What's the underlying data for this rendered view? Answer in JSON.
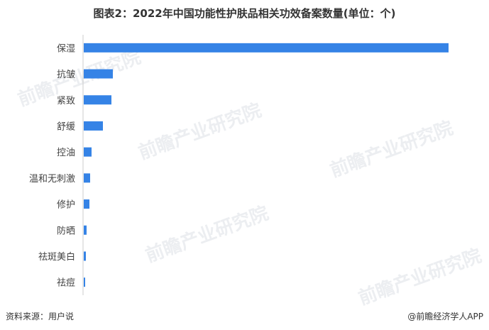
{
  "chart_data": {
    "type": "bar",
    "orientation": "horizontal",
    "title": "图表2：2022年中国功能性护肤品相关功效备案数量(单位：个)",
    "categories": [
      "保湿",
      "抗皱",
      "紧致",
      "舒缓",
      "控油",
      "温和无刺激",
      "修护",
      "防晒",
      "祛斑美白",
      "祛痘"
    ],
    "values": [
      514,
      41,
      39,
      27,
      11,
      9,
      8,
      4,
      3,
      2
    ],
    "xlim": [
      0,
      520
    ],
    "grid": false,
    "bar_color": "#3583E6"
  },
  "footer": {
    "source": "资料来源：用户说",
    "brand": "@前瞻经济学人APP"
  },
  "watermark": "前瞻产业研究院"
}
